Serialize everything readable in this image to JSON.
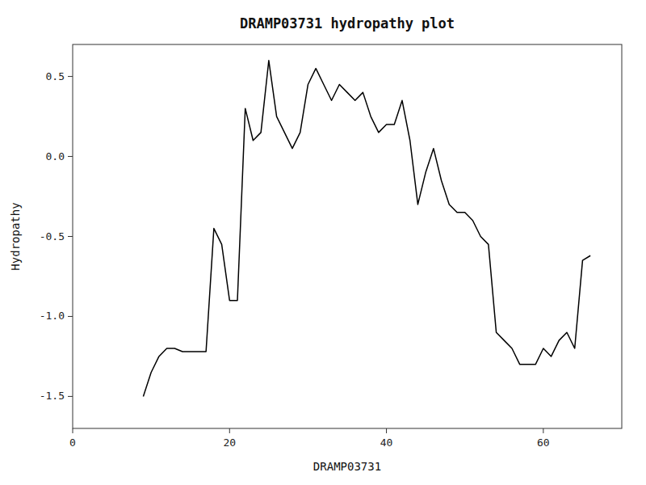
{
  "chart_data": {
    "type": "line",
    "title": "DRAMP03731 hydropathy plot",
    "xlabel": "DRAMP03731",
    "ylabel": "Hydropathy",
    "xlim": [
      0,
      70
    ],
    "ylim": [
      -1.7,
      0.7
    ],
    "xticks": [
      0,
      20,
      40,
      60
    ],
    "yticks": [
      -1.5,
      {
        "value": -1.0,
        "label": "-1.0"
      },
      -0.5,
      {
        "value": 0.0,
        "label": "0.0"
      },
      0.5
    ],
    "color": "#000000",
    "x": [
      9,
      10,
      11,
      12,
      13,
      14,
      15,
      16,
      17,
      18,
      19,
      20,
      21,
      22,
      23,
      24,
      25,
      26,
      27,
      28,
      29,
      30,
      31,
      32,
      33,
      34,
      35,
      36,
      37,
      38,
      39,
      40,
      41,
      42,
      43,
      44,
      45,
      46,
      47,
      48,
      49,
      50,
      51,
      52,
      53,
      54,
      55,
      56,
      57,
      58,
      59,
      60,
      61,
      62,
      63,
      64,
      65,
      66
    ],
    "values": [
      -1.5,
      -1.35,
      -1.25,
      -1.2,
      -1.2,
      -1.22,
      -1.22,
      -1.22,
      -1.22,
      -0.45,
      -0.55,
      -0.9,
      -0.9,
      0.3,
      0.1,
      0.15,
      0.6,
      0.25,
      0.15,
      0.05,
      0.15,
      0.45,
      0.55,
      0.45,
      0.35,
      0.45,
      0.4,
      0.35,
      0.4,
      0.25,
      0.15,
      0.2,
      0.2,
      0.35,
      0.1,
      -0.3,
      -0.1,
      0.05,
      -0.15,
      -0.3,
      -0.35,
      -0.35,
      -0.4,
      -0.5,
      -0.55,
      -1.1,
      -1.15,
      -1.2,
      -1.3,
      -1.3,
      -1.3,
      -1.2,
      -1.25,
      -1.15,
      -1.1,
      -1.2,
      -0.65,
      -0.62
    ]
  }
}
